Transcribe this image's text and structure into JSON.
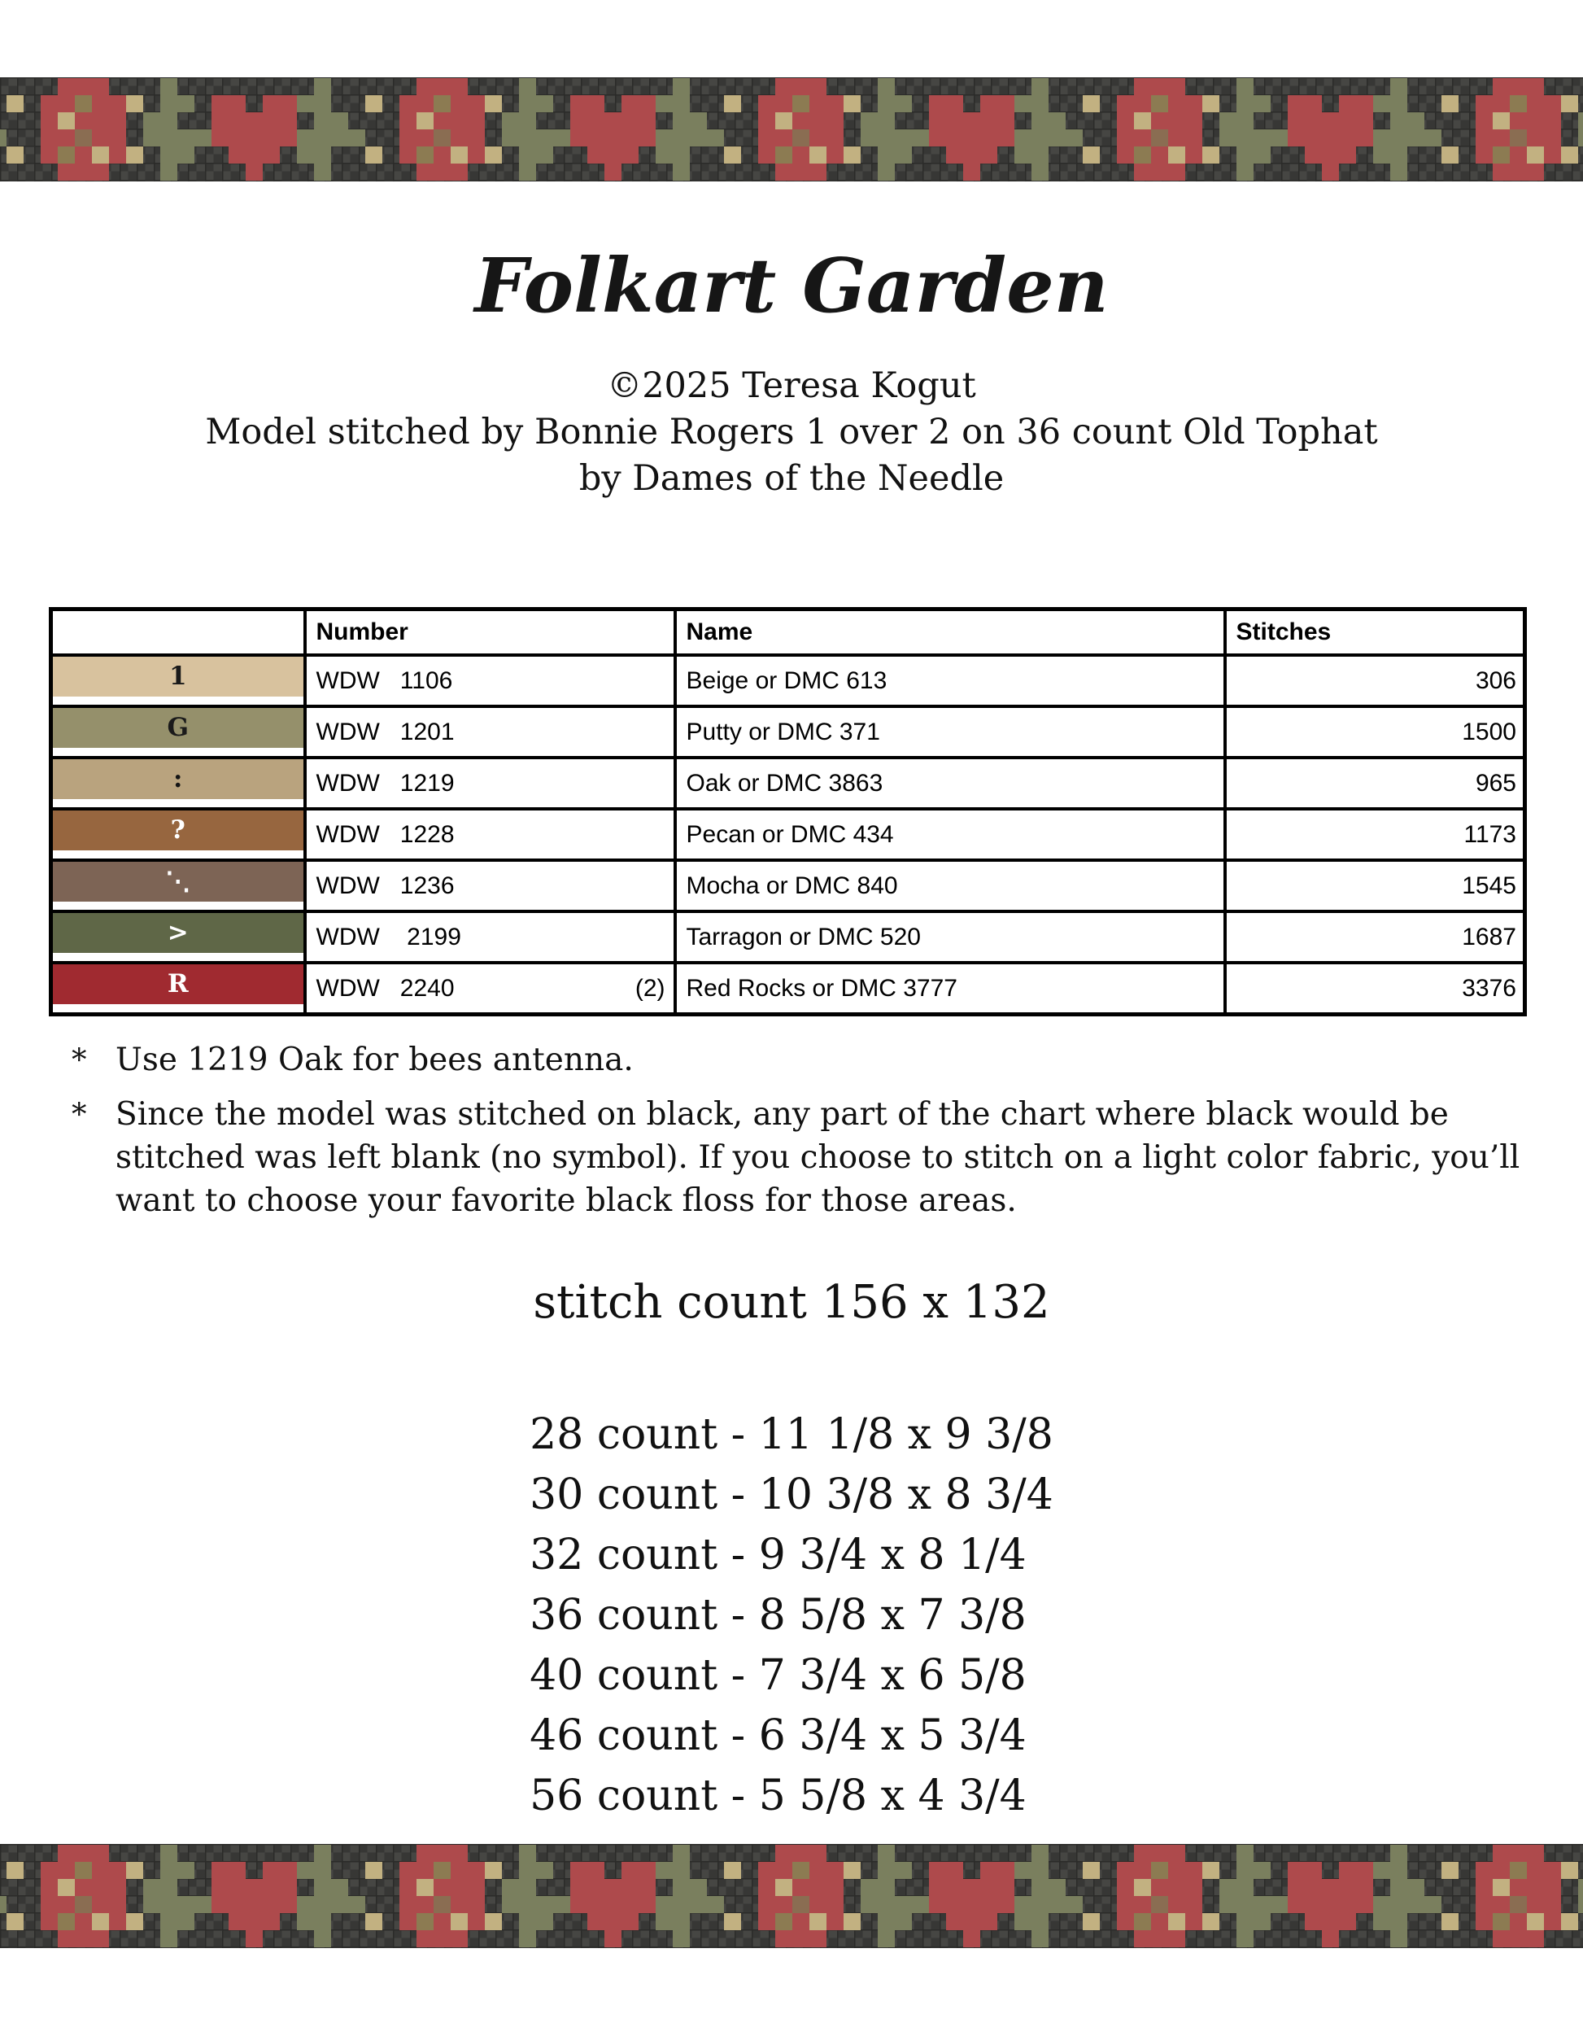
{
  "page": {
    "title": "Folkart Garden",
    "copyright": "©2025 Teresa Kogut",
    "model_line": "Model stitched by Bonnie Rogers 1 over 2 on 36 count Old Tophat",
    "byline": "by Dames of the Needle"
  },
  "floss_table": {
    "headers": {
      "symbol": "",
      "number": "Number",
      "name": "Name",
      "stitches": "Stitches"
    },
    "rows": [
      {
        "symbol": "1",
        "symbol_color": "#1a1a1a",
        "swatch": "#d8c29e",
        "number": "WDW   1106",
        "number_note": "",
        "name": "Beige or DMC 613",
        "stitches": "306"
      },
      {
        "symbol": "G",
        "symbol_color": "#1a1a1a",
        "swatch": "#95906b",
        "number": "WDW   1201",
        "number_note": "",
        "name": "Putty or DMC 371",
        "stitches": "1500"
      },
      {
        "symbol": ":",
        "symbol_color": "#141414",
        "swatch": "#b9a37e",
        "number": "WDW   1219",
        "number_note": "",
        "name": "Oak or DMC 3863",
        "stitches": "965"
      },
      {
        "symbol": "?",
        "symbol_color": "#ffffff",
        "swatch": "#97663f",
        "number": "WDW   1228",
        "number_note": "",
        "name": "Pecan or DMC 434",
        "stitches": "1173"
      },
      {
        "symbol": "⋱",
        "symbol_color": "#ffffff",
        "swatch": "#7d6455",
        "number": "WDW   1236",
        "number_note": "",
        "name": "Mocha or DMC 840",
        "stitches": "1545"
      },
      {
        "symbol": ">",
        "symbol_color": "#ffffff",
        "swatch": "#5f6747",
        "number": "WDW    2199",
        "number_note": "",
        "name": "Tarragon or DMC 520",
        "stitches": "1687"
      },
      {
        "symbol": "R",
        "symbol_color": "#ffffff",
        "swatch": "#a02a30",
        "number": "WDW   2240",
        "number_note": "(2)",
        "name": "Red Rocks or DMC 3777",
        "stitches": "3376"
      }
    ]
  },
  "note_marker": "*",
  "notes": [
    "Use 1219 Oak for bees antenna.",
    "Since the model was stitched on black, any part of the chart where black would be stitched was left blank (no symbol). If you choose to stitch on a light color fabric, you’ll want to choose your favorite black floss for those areas."
  ],
  "sizes": {
    "stitch_count": "stitch count 156 x 132",
    "counts": [
      "28 count - 11 1/8 x 9 3/8",
      "30 count - 10 3/8 x 8 3/4",
      "32 count - 9 3/4 x 8 1/4",
      "36 count - 8 5/8 x 7 3/8",
      "40 count - 7 3/4 x 6 5/8",
      "46 count - 6 3/4 x 5 3/4",
      "56 count - 5 5/8 x 4 3/4"
    ]
  },
  "colors": {
    "fabric_base": "#373735",
    "fabric_light": "#464643",
    "fabric_dark": "#2b2b29",
    "berry_red": "#ae4a4c",
    "leaf_green": "#7a7f5e",
    "accent_tan": "#c2b181",
    "dot_olive": "#8c7b52",
    "dot_brown": "#8a6d52",
    "table_border": "#000000"
  }
}
